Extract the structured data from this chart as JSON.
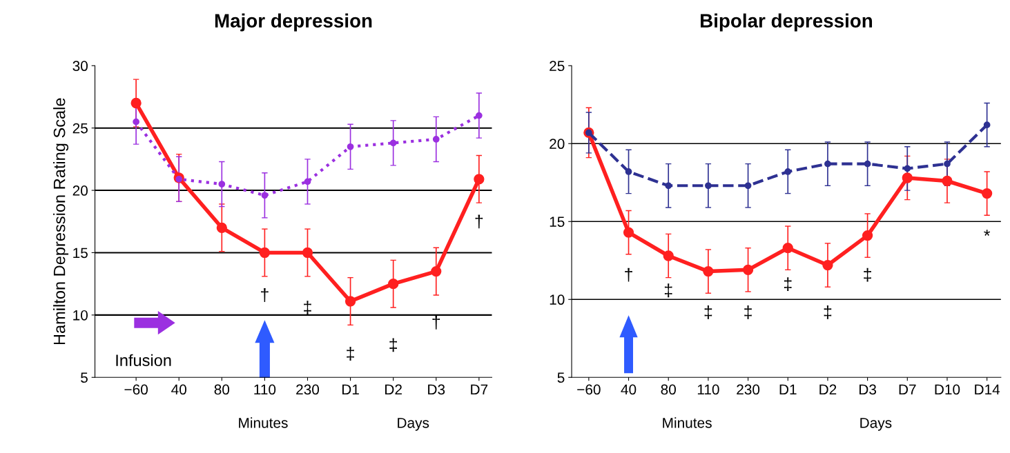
{
  "chart_data": [
    {
      "type": "line",
      "title": "Major depression",
      "ylabel": "Hamilton Depression Rating Scale",
      "categories": [
        "−60",
        "40",
        "80",
        "110",
        "230",
        "D1",
        "D2",
        "D3",
        "D7"
      ],
      "series": [
        {
          "color": "#ff2020",
          "line_style": "solid",
          "values": [
            27.0,
            21.0,
            17.0,
            15.0,
            15.0,
            11.1,
            12.5,
            13.5,
            20.9
          ],
          "errors": [
            1.9,
            1.9,
            1.9,
            1.9,
            1.9,
            1.9,
            1.9,
            1.9,
            1.9
          ]
        },
        {
          "color": "#9b30e0",
          "line_style": "dotted",
          "values": [
            25.5,
            20.9,
            20.5,
            19.6,
            20.7,
            23.5,
            23.8,
            24.1,
            26.0
          ],
          "errors": [
            1.8,
            1.8,
            1.8,
            1.8,
            1.8,
            1.8,
            1.8,
            1.8,
            1.8
          ]
        }
      ],
      "marker": "circle",
      "ylim": [
        5,
        30
      ],
      "yticks": [
        5,
        10,
        15,
        20,
        25,
        30
      ],
      "grid": "y",
      "legend": false,
      "annotations": [
        "Infusion",
        "Minutes",
        "Days",
        "†",
        "‡",
        "‡",
        "‡",
        "†",
        "†"
      ]
    },
    {
      "type": "line",
      "title": "Bipolar depression",
      "categories": [
        "−60",
        "40",
        "80",
        "110",
        "230",
        "D1",
        "D2",
        "D3",
        "D7",
        "D10",
        "D14"
      ],
      "series": [
        {
          "color": "#ff2020",
          "line_style": "solid",
          "values": [
            20.7,
            14.3,
            12.8,
            11.8,
            11.9,
            13.3,
            12.2,
            14.1,
            17.8,
            17.6,
            16.8
          ],
          "errors": [
            1.6,
            1.4,
            1.4,
            1.4,
            1.4,
            1.4,
            1.4,
            1.4,
            1.4,
            1.4,
            1.4
          ]
        },
        {
          "color": "#2e3192",
          "line_style": "dashed",
          "values": [
            20.7,
            18.2,
            17.3,
            17.3,
            17.3,
            18.2,
            18.7,
            18.7,
            18.4,
            18.7,
            21.2
          ],
          "errors": [
            1.3,
            1.4,
            1.4,
            1.4,
            1.4,
            1.4,
            1.4,
            1.4,
            1.4,
            1.4,
            1.4
          ]
        }
      ],
      "marker": "circle",
      "ylim": [
        5,
        25
      ],
      "yticks": [
        5,
        10,
        15,
        20,
        25
      ],
      "grid": "y",
      "legend": false,
      "annotations": [
        "Minutes",
        "Days",
        "†",
        "‡",
        "‡",
        "‡",
        "‡",
        "‡",
        "‡",
        "*"
      ]
    }
  ]
}
